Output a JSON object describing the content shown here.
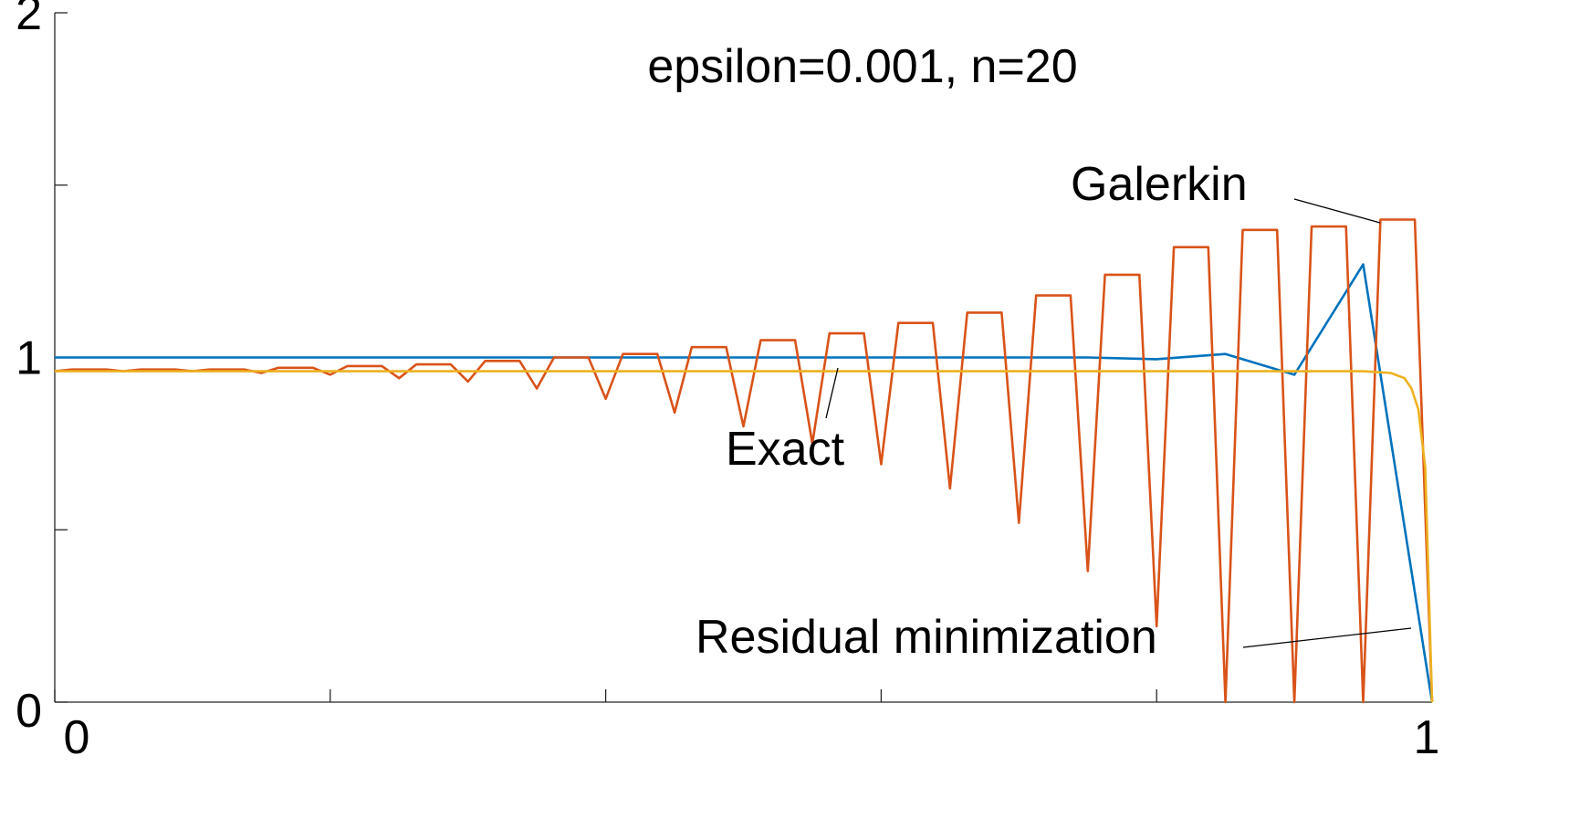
{
  "chart_data": {
    "type": "line",
    "title": "epsilon=0.001, n=20",
    "xlabel": "",
    "ylabel": "",
    "xlim": [
      0,
      1
    ],
    "ylim": [
      0,
      2
    ],
    "xticks": [
      0,
      0.2,
      0.4,
      0.6,
      0.8,
      1
    ],
    "xtick_labels": [
      "0",
      "",
      "",
      "",
      "",
      "1"
    ],
    "yticks": [
      0,
      0.5,
      1,
      1.5,
      2
    ],
    "ytick_labels": [
      "0",
      "",
      "1",
      "",
      "2"
    ],
    "grid": false,
    "legend": "none",
    "series": [
      {
        "key": "blue",
        "color": "#0072BD",
        "x": [
          0,
          0.05,
          0.1,
          0.15,
          0.2,
          0.25,
          0.3,
          0.35,
          0.4,
          0.45,
          0.5,
          0.55,
          0.6,
          0.65,
          0.7,
          0.75,
          0.8,
          0.85,
          0.9,
          0.95,
          1.0
        ],
        "y": [
          1.0,
          1.0,
          1.0,
          1.0,
          1.0,
          1.0,
          1.0,
          1.0,
          1.0,
          1.0,
          1.0,
          1.0,
          1.0,
          1.0,
          1.0,
          1.0,
          0.995,
          1.01,
          0.95,
          1.27,
          0.0
        ]
      },
      {
        "key": "orange",
        "color": "#D95319",
        "x": [
          0.0,
          0.0125,
          0.0375,
          0.05,
          0.0625,
          0.0875,
          0.1,
          0.1125,
          0.1375,
          0.15,
          0.1625,
          0.1875,
          0.2,
          0.2125,
          0.2375,
          0.25,
          0.2625,
          0.2875,
          0.3,
          0.3125,
          0.3375,
          0.35,
          0.3625,
          0.3875,
          0.4,
          0.4125,
          0.4375,
          0.45,
          0.4625,
          0.4875,
          0.5,
          0.5125,
          0.5375,
          0.55,
          0.5625,
          0.5875,
          0.6,
          0.6125,
          0.6375,
          0.65,
          0.6625,
          0.6875,
          0.7,
          0.7125,
          0.7375,
          0.75,
          0.7625,
          0.7875,
          0.8,
          0.8125,
          0.8375,
          0.85,
          0.8625,
          0.8875,
          0.9,
          0.9125,
          0.9375,
          0.95,
          0.9625,
          0.9875,
          1.0
        ],
        "y": [
          0.96,
          0.965,
          0.965,
          0.96,
          0.965,
          0.965,
          0.96,
          0.965,
          0.965,
          0.955,
          0.97,
          0.97,
          0.95,
          0.975,
          0.975,
          0.94,
          0.98,
          0.98,
          0.93,
          0.99,
          0.99,
          0.91,
          1.0,
          1.0,
          0.88,
          1.01,
          1.01,
          0.84,
          1.03,
          1.03,
          0.8,
          1.05,
          1.05,
          0.75,
          1.07,
          1.07,
          0.69,
          1.1,
          1.1,
          0.62,
          1.13,
          1.13,
          0.52,
          1.18,
          1.18,
          0.38,
          1.24,
          1.24,
          0.22,
          1.32,
          1.32,
          0.0,
          1.37,
          1.37,
          0.0,
          1.38,
          1.38,
          0.0,
          1.4,
          1.4,
          0.0
        ]
      },
      {
        "key": "yellow",
        "color": "#EDB120",
        "x": [
          0.0,
          0.1,
          0.2,
          0.3,
          0.4,
          0.5,
          0.6,
          0.7,
          0.8,
          0.9,
          0.95,
          0.97,
          0.98,
          0.985,
          0.99,
          0.995,
          1.0
        ],
        "y": [
          0.96,
          0.96,
          0.96,
          0.96,
          0.96,
          0.96,
          0.96,
          0.96,
          0.96,
          0.96,
          0.96,
          0.955,
          0.94,
          0.91,
          0.85,
          0.68,
          0.0
        ]
      }
    ],
    "annotations": [
      {
        "key": "galerkin",
        "text": "Galerkin",
        "x_pt": 0.968,
        "y_pt": 1.395
      },
      {
        "key": "exact",
        "text": "Exact",
        "x_pt": 0.568,
        "y_pt": 0.96
      },
      {
        "key": "residual",
        "text": "Residual minimization",
        "x_pt": 0.993,
        "y_pt": 0.21
      }
    ]
  }
}
